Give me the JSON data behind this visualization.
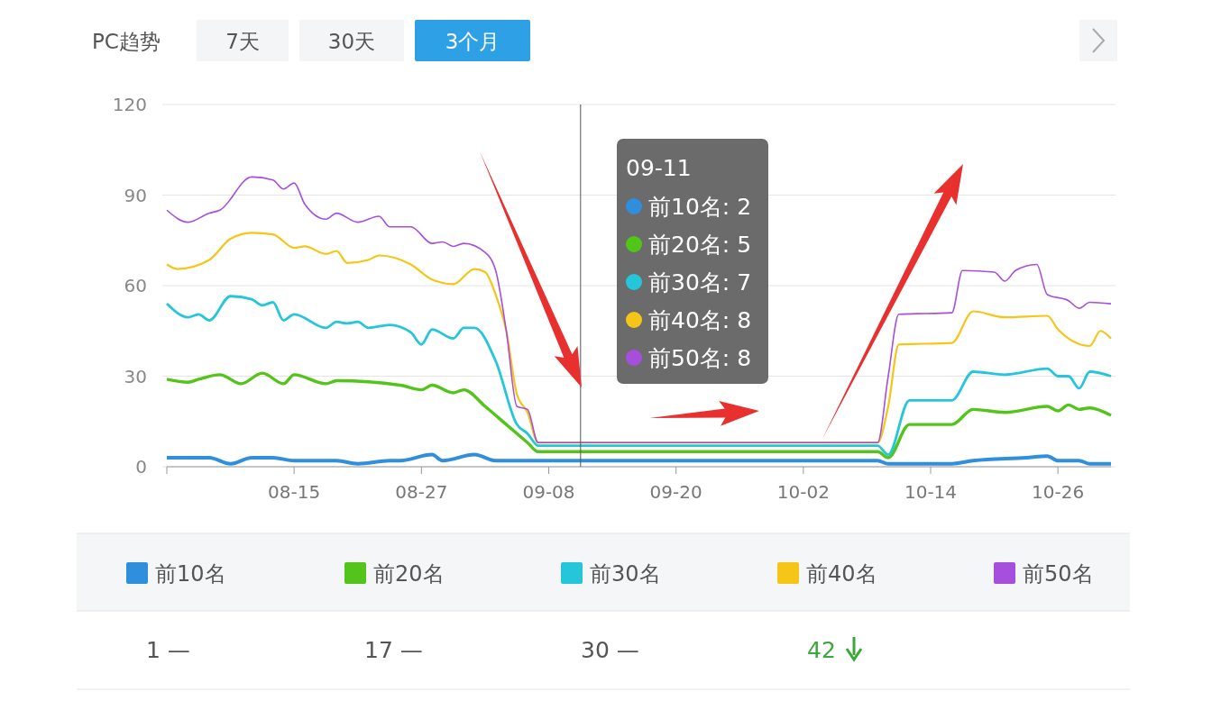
{
  "chart_data": {
    "type": "line",
    "xlim": [
      "--08-03",
      "--10-31"
    ],
    "xticks": [
      {
        "value": "--08-15",
        "label": "08-15"
      },
      {
        "value": "--08-27",
        "label": "08-27"
      },
      {
        "value": "--09-08",
        "label": "09-08"
      },
      {
        "value": "--09-20",
        "label": "09-20"
      },
      {
        "value": "--10-02",
        "label": "10-02"
      },
      {
        "value": "--10-14",
        "label": "10-14"
      },
      {
        "value": "--10-26",
        "label": "10-26"
      }
    ],
    "ylim": [
      0,
      120
    ],
    "yticks": [
      0,
      30,
      60,
      90,
      120
    ],
    "grid": "y",
    "legend": "bottom",
    "series": [
      {
        "name": "前10名",
        "color": "#2f8fdd",
        "x": [
          "--08-03",
          "--08-07",
          "--08-09",
          "--08-11",
          "--08-13",
          "--08-15",
          "--08-19",
          "--08-21",
          "--08-24",
          "--08-25",
          "--08-28",
          "--08-29",
          "--09-01",
          "--09-03",
          "--09-04",
          "--09-11",
          "--10-09",
          "--10-10",
          "--10-16",
          "--10-18",
          "--10-23",
          "--10-25",
          "--10-26",
          "--10-28",
          "--10-29",
          "--10-31"
        ],
        "values": [
          3,
          3,
          1,
          3,
          3,
          2,
          2,
          1,
          2,
          2,
          4,
          2,
          4,
          2,
          2,
          2,
          2,
          1,
          1,
          2,
          3,
          3.5,
          2,
          2,
          1,
          1
        ]
      },
      {
        "name": "前20名",
        "color": "#52c41a",
        "x": [
          "--08-03",
          "--08-05",
          "--08-06",
          "--08-08",
          "--08-10",
          "--08-12",
          "--08-14",
          "--08-15",
          "--08-18",
          "--08-19",
          "--08-25",
          "--08-27",
          "--08-28",
          "--08-30",
          "--08-31",
          "--09-02",
          "--09-04",
          "--09-06",
          "--09-07",
          "--09-11",
          "--10-09",
          "--10-10",
          "--10-12",
          "--10-16",
          "--10-18",
          "--10-21",
          "--10-25",
          "--10-26",
          "--10-27",
          "--10-28",
          "--10-29",
          "--10-31"
        ],
        "values": [
          29,
          28,
          29,
          30.5,
          27.5,
          31,
          27.5,
          30.5,
          27.5,
          28.5,
          27,
          25.5,
          27,
          24.5,
          25.5,
          20,
          14,
          8,
          5,
          5,
          5,
          3,
          14,
          14,
          19,
          18,
          20,
          18.5,
          20.5,
          19,
          19.5,
          17
        ]
      },
      {
        "name": "前30名",
        "color": "#26c6da",
        "x": [
          "--08-03",
          "--08-05",
          "--08-06",
          "--08-07",
          "--08-09",
          "--08-11",
          "--08-12",
          "--08-13",
          "--08-14",
          "--08-15",
          "--08-18",
          "--08-19",
          "--08-20",
          "--08-21",
          "--08-22",
          "--08-24",
          "--08-26",
          "--08-27",
          "--08-28",
          "--08-30",
          "--08-31",
          "--09-01",
          "--09-03",
          "--09-05",
          "--09-06",
          "--09-07",
          "--09-11",
          "--10-09",
          "--10-10",
          "--10-12",
          "--10-16",
          "--10-18",
          "--10-21",
          "--10-25",
          "--10-26",
          "--10-27",
          "--10-28",
          "--10-29",
          "--10-31"
        ],
        "values": [
          54,
          49.5,
          50.5,
          48.5,
          56.5,
          55.5,
          53.5,
          54.5,
          48.5,
          50.5,
          46,
          48,
          47.5,
          48,
          46,
          47,
          44.5,
          40.5,
          45.5,
          42.5,
          46,
          46,
          35,
          14,
          11,
          7,
          7,
          7,
          4,
          22,
          22,
          31.5,
          30.5,
          32.5,
          30,
          30,
          26,
          31.5,
          30
        ]
      },
      {
        "name": "前40名",
        "color": "#f5c518",
        "x": [
          "--08-03",
          "--08-04",
          "--08-07",
          "--08-09",
          "--08-11",
          "--08-13",
          "--08-15",
          "--08-16",
          "--08-18",
          "--08-19",
          "--08-20",
          "--08-22",
          "--08-23",
          "--08-26",
          "--08-28",
          "--08-30",
          "--09-01",
          "--09-02",
          "--09-03",
          "--09-04",
          "--09-05",
          "--09-06",
          "--09-07",
          "--09-11",
          "--10-09",
          "--10-10",
          "--10-11",
          "--10-16",
          "--10-18",
          "--10-21",
          "--10-25",
          "--10-26",
          "--10-29",
          "--10-30",
          "--10-31"
        ],
        "values": [
          67,
          65.5,
          68.5,
          75.5,
          77.5,
          77,
          72.5,
          73,
          70.5,
          71.5,
          67.5,
          68.5,
          70,
          67,
          62,
          60.5,
          65.5,
          64.5,
          57,
          45,
          24,
          18,
          8,
          8,
          8,
          20,
          40.5,
          41,
          51.5,
          49.5,
          50,
          45.5,
          40,
          45,
          42.5
        ]
      },
      {
        "name": "前50名",
        "color": "#a64fdc",
        "x": [
          "--08-03",
          "--08-05",
          "--08-07",
          "--08-08",
          "--08-11",
          "--08-13",
          "--08-14",
          "--08-15",
          "--08-16",
          "--08-18",
          "--08-19",
          "--08-21",
          "--08-23",
          "--08-24",
          "--08-26",
          "--08-28",
          "--08-29",
          "--08-30",
          "--08-31",
          "--09-02",
          "--09-03",
          "--09-04",
          "--09-05",
          "--09-06",
          "--09-07",
          "--09-11",
          "--10-09",
          "--10-10",
          "--10-11",
          "--10-16",
          "--10-17",
          "--10-20",
          "--10-21",
          "--10-22",
          "--10-24",
          "--10-25",
          "--10-27",
          "--10-28",
          "--10-29",
          "--10-31"
        ],
        "values": [
          85,
          81,
          84,
          85,
          96,
          95,
          92,
          94,
          87,
          82,
          84,
          81,
          83,
          79.5,
          79.5,
          74,
          74.5,
          73,
          74,
          71,
          65,
          45,
          20,
          19,
          8,
          8,
          8,
          30,
          50.5,
          51,
          65,
          64.5,
          61.5,
          65,
          67,
          57,
          55,
          52.5,
          54.5,
          54
        ]
      }
    ],
    "ref_lines": [
      {
        "axis": "x",
        "value": "--09-11",
        "color": "#555555"
      }
    ],
    "annotations": [
      "PC趋势",
      "7天",
      "30天",
      "3个月",
      "09-11",
      "前10名: 2",
      "前20名: 5",
      "前30名: 7",
      "前40名: 8",
      "前50名: 8",
      "1 —",
      "17 —",
      "30 —",
      "42"
    ]
  }
}
